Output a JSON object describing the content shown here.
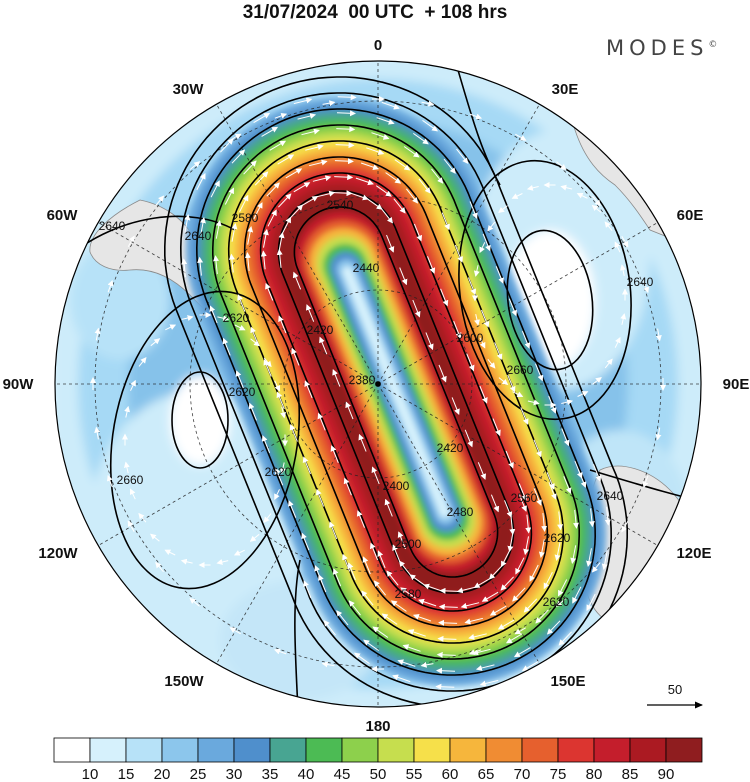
{
  "header": {
    "title": "31/07/2024  00 UTC  + 108 hrs",
    "brand": "MODES",
    "brand_mark": "©"
  },
  "map": {
    "projection": "south polar stereographic",
    "variable_levels_note": "",
    "longitude_labels": [
      "0",
      "30E",
      "60E",
      "90E",
      "120E",
      "150E",
      "180",
      "150W",
      "120W",
      "90W",
      "60W",
      "30W"
    ],
    "contour_labels": [
      "2640",
      "2640",
      "2580",
      "2540",
      "2440",
      "2420",
      "2620",
      "2600",
      "2660",
      "2380",
      "2640",
      "2620",
      "2400",
      "2420",
      "2660",
      "2620",
      "2480",
      "2560",
      "2640",
      "2620",
      "2620",
      "2500",
      "2580"
    ],
    "wind_reference": {
      "value": "50"
    },
    "colors": {
      "land": "#e6e6e6",
      "coast": "#8a8a8a",
      "contour": "#000000",
      "arrows": "#ffffff"
    }
  },
  "colorbar": {
    "ticks": [
      "10",
      "15",
      "20",
      "25",
      "30",
      "35",
      "40",
      "45",
      "50",
      "55",
      "60",
      "65",
      "70",
      "75",
      "80",
      "85",
      "90"
    ],
    "colors": [
      "#ffffff",
      "#d6f1fc",
      "#b7e2f8",
      "#8cc6ec",
      "#6aa9dd",
      "#4f8fcc",
      "#48a592",
      "#4cbb54",
      "#8dd04c",
      "#c6de4e",
      "#f6e04a",
      "#f6b63c",
      "#f08c33",
      "#e6602e",
      "#dc3530",
      "#c41e2c",
      "#ab1a22",
      "#8f1d1f"
    ]
  }
}
